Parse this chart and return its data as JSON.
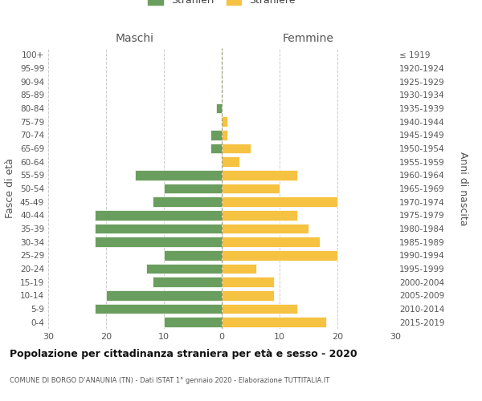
{
  "age_groups": [
    "0-4",
    "5-9",
    "10-14",
    "15-19",
    "20-24",
    "25-29",
    "30-34",
    "35-39",
    "40-44",
    "45-49",
    "50-54",
    "55-59",
    "60-64",
    "65-69",
    "70-74",
    "75-79",
    "80-84",
    "85-89",
    "90-94",
    "95-99",
    "100+"
  ],
  "birth_years": [
    "2015-2019",
    "2010-2014",
    "2005-2009",
    "2000-2004",
    "1995-1999",
    "1990-1994",
    "1985-1989",
    "1980-1984",
    "1975-1979",
    "1970-1974",
    "1965-1969",
    "1960-1964",
    "1955-1959",
    "1950-1954",
    "1945-1949",
    "1940-1944",
    "1935-1939",
    "1930-1934",
    "1925-1929",
    "1920-1924",
    "≤ 1919"
  ],
  "males": [
    10,
    22,
    20,
    12,
    13,
    10,
    22,
    22,
    22,
    12,
    10,
    15,
    0,
    2,
    2,
    0,
    1,
    0,
    0,
    0,
    0
  ],
  "females": [
    18,
    13,
    9,
    9,
    6,
    20,
    17,
    15,
    13,
    20,
    10,
    13,
    3,
    5,
    1,
    1,
    0,
    0,
    0,
    0,
    0
  ],
  "male_color": "#6a9e5e",
  "female_color": "#f5c242",
  "title": "Popolazione per cittadinanza straniera per età e sesso - 2020",
  "subtitle": "COMUNE DI BORGO D’ANAUNIA (TN) - Dati ISTAT 1° gennaio 2020 - Elaborazione TUTTITALIA.IT",
  "ylabel_left": "Fasce di età",
  "ylabel_right": "Anni di nascita",
  "xlabel_left": "Maschi",
  "xlabel_right": "Femmine",
  "xlim": 30,
  "background_color": "#ffffff",
  "grid_color": "#cccccc",
  "bar_edge_color": "white"
}
